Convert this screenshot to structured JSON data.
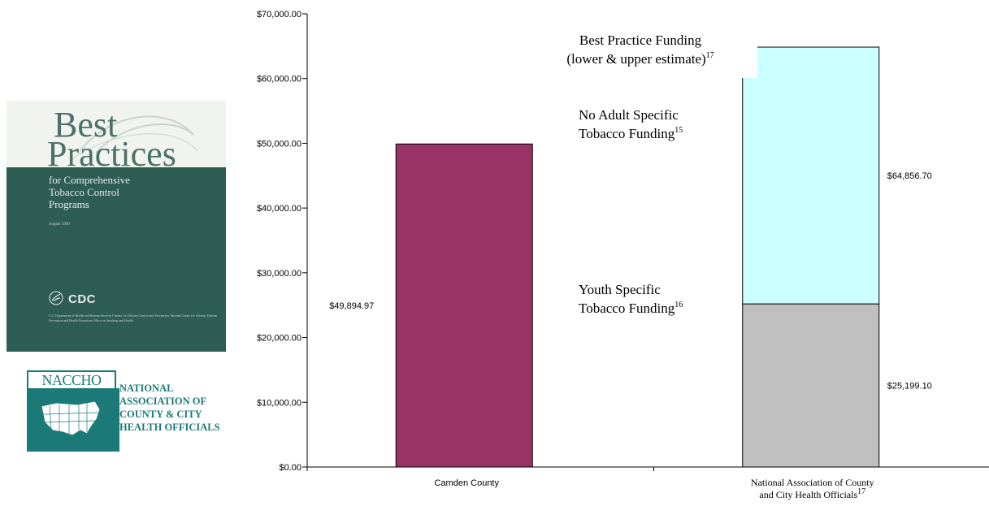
{
  "book_cover": {
    "title_line1": "Best",
    "title_line2": "Practices",
    "subtitle": "for Comprehensive\nTobacco Control\nPrograms",
    "date": "August 1999",
    "org_logo": "CDC",
    "fine_print": "U.S. Department of Health and Human Services Centers for Disease Control and Prevention National Center for Chronic Disease Prevention and Health Promotion Office on Smoking and Health",
    "background_color": "#2e5d54",
    "icons": [
      "swirl-decoration",
      "hhs-eagle-icon"
    ]
  },
  "naccho_logo": {
    "wordmark": "NACCHO",
    "text_lines": [
      "NATIONAL",
      "ASSOCIATION OF",
      "COUNTY & CITY",
      "HEALTH OFFICIALS"
    ],
    "color": "#1b7a77",
    "icons": [
      "us-map-icon"
    ]
  },
  "chart_data": {
    "type": "bar",
    "stacked": true,
    "title": "",
    "xlabel": "",
    "ylabel": "",
    "ylim": [
      0,
      70000
    ],
    "y_ticks": [
      0,
      10000,
      20000,
      30000,
      40000,
      50000,
      60000,
      70000
    ],
    "y_tick_labels": [
      "$0.00",
      "$10,000.00",
      "$20,000.00",
      "$30,000.00",
      "$40,000.00",
      "$50,000.00",
      "$60,000.00",
      "$70,000.00"
    ],
    "categories": [
      "Camden County",
      "National Association of County and City Health Officials"
    ],
    "category_superscripts": [
      "",
      "17"
    ],
    "series": [
      {
        "color": "#993366",
        "values": [
          49894.97,
          null
        ],
        "labels": [
          "$49,894.97",
          ""
        ]
      },
      {
        "color": "#c0c0c0",
        "values": [
          null,
          25199.1
        ],
        "labels": [
          "",
          "$25,199.10"
        ]
      },
      {
        "color": "#ccffff",
        "values": [
          null,
          39657.6
        ],
        "labels": [
          "",
          "$64,856.70"
        ]
      }
    ],
    "totals": [
      49894.97,
      64856.7
    ],
    "annotations": [
      {
        "lines": [
          "Best Practice Funding",
          "(lower & upper estimate)"
        ],
        "superscript": "17"
      },
      {
        "lines": [
          "No Adult Specific",
          "Tobacco Funding"
        ],
        "superscript": "15"
      },
      {
        "lines": [
          "Youth Specific",
          "Tobacco Funding"
        ],
        "superscript": "16"
      }
    ],
    "grid": false,
    "legend": "none"
  }
}
